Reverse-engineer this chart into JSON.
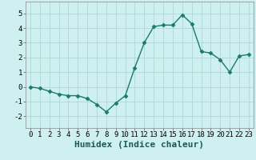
{
  "x": [
    0,
    1,
    2,
    3,
    4,
    5,
    6,
    7,
    8,
    9,
    10,
    11,
    12,
    13,
    14,
    15,
    16,
    17,
    18,
    19,
    20,
    21,
    22,
    23
  ],
  "y": [
    0.0,
    -0.1,
    -0.3,
    -0.5,
    -0.6,
    -0.6,
    -0.8,
    -1.2,
    -1.7,
    -1.1,
    -0.6,
    1.3,
    3.0,
    4.1,
    4.2,
    4.2,
    4.9,
    4.3,
    2.4,
    2.3,
    1.85,
    1.0,
    2.1,
    2.2
  ],
  "xlabel": "Humidex (Indice chaleur)",
  "xlim": [
    -0.5,
    23.5
  ],
  "ylim": [
    -2.8,
    5.8
  ],
  "yticks": [
    -2,
    -1,
    0,
    1,
    2,
    3,
    4,
    5
  ],
  "xticks": [
    0,
    1,
    2,
    3,
    4,
    5,
    6,
    7,
    8,
    9,
    10,
    11,
    12,
    13,
    14,
    15,
    16,
    17,
    18,
    19,
    20,
    21,
    22,
    23
  ],
  "line_color": "#1a7a6e",
  "marker": "D",
  "marker_size": 2.5,
  "bg_color": "#cff0f0",
  "grid_color": "#b0d8d4",
  "tick_label_fontsize": 6.5,
  "xlabel_fontsize": 8
}
